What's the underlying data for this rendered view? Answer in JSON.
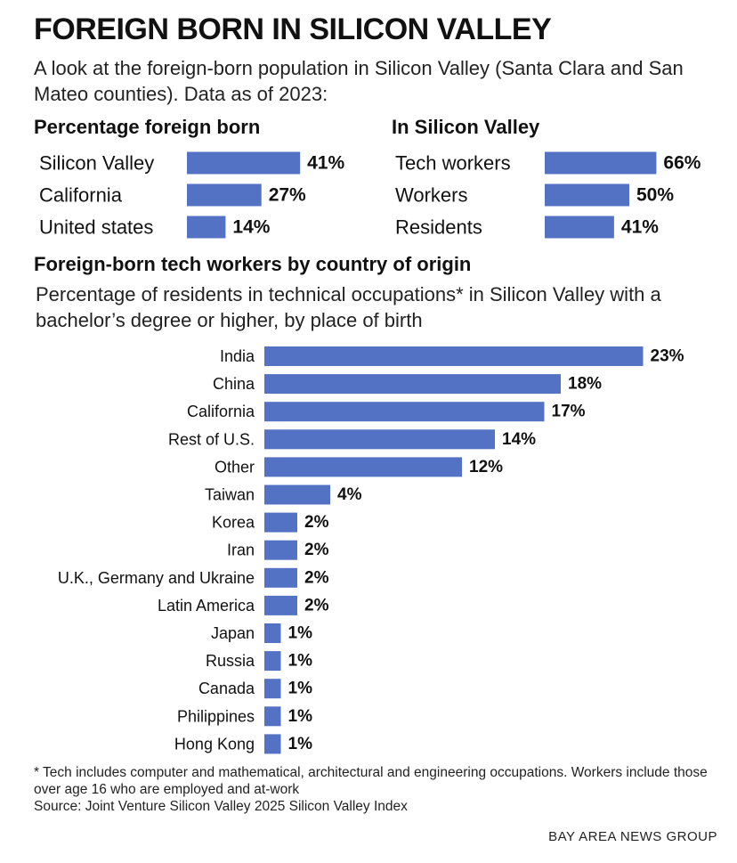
{
  "title": "FOREIGN BORN IN SILICON VALLEY",
  "subtitle": "A look at the foreign-born population in Silicon Valley (Santa Clara and San Mateo counties). Data as of 2023:",
  "footnote": "* Tech includes computer and mathematical, architectural and engineering occupations. Workers include those over age 16 who are employed and at-work",
  "source": "Source: Joint Venture Silicon Valley 2025 Silicon Valley Index",
  "credit": "BAY AREA NEWS GROUP",
  "colors": {
    "bar": "#5472c4",
    "text": "#111111"
  },
  "chart_data": [
    {
      "type": "bar",
      "orientation": "horizontal",
      "title": "Percentage foreign born",
      "categories": [
        "Silicon Valley",
        "California",
        "United states"
      ],
      "values": [
        41,
        27,
        14
      ],
      "labels": [
        "41%",
        "27%",
        "14%"
      ],
      "unit": "%"
    },
    {
      "type": "bar",
      "orientation": "horizontal",
      "title": "In Silicon Valley",
      "categories": [
        "Tech workers",
        "Workers",
        "Residents"
      ],
      "values": [
        66,
        50,
        41
      ],
      "labels": [
        "66%",
        "50%",
        "41%"
      ],
      "unit": "%"
    },
    {
      "type": "bar",
      "orientation": "horizontal",
      "title": "Foreign-born tech workers by country of origin",
      "subtitle": "Percentage of residents in technical occupations* in Silicon Valley with a bachelor’s degree or higher, by place of birth",
      "categories": [
        "India",
        "China",
        "California",
        "Rest of U.S.",
        "Other",
        "Taiwan",
        "Korea",
        "Iran",
        "U.K., Germany and Ukraine",
        "Latin America",
        "Japan",
        "Russia",
        "Canada",
        "Philippines",
        "Hong Kong"
      ],
      "values": [
        23,
        18,
        17,
        14,
        12,
        4,
        2,
        2,
        2,
        2,
        1,
        1,
        1,
        1,
        1
      ],
      "labels": [
        "23%",
        "18%",
        "17%",
        "14%",
        "12%",
        "4%",
        "2%",
        "2%",
        "2%",
        "2%",
        "1%",
        "1%",
        "1%",
        "1%",
        "1%"
      ],
      "unit": "%"
    }
  ]
}
